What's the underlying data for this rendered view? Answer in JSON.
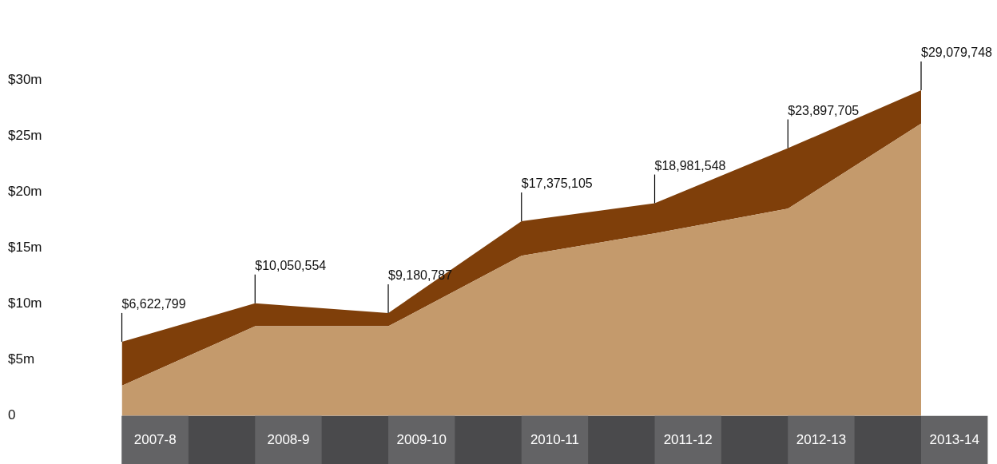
{
  "chart_data": {
    "type": "area",
    "stacked": true,
    "categories": [
      "2007-8",
      "2008-9",
      "2009-10",
      "2010-11",
      "2011-12",
      "2012-13",
      "2013-14"
    ],
    "series": [
      {
        "color": "#c49a6c",
        "values": [
          2.7,
          8.0,
          8.0,
          14.3,
          16.3,
          18.5,
          26.1
        ]
      },
      {
        "color": "#7f3f0a",
        "values": [
          3.922799,
          2.050554,
          1.180787,
          3.075105,
          2.681548,
          5.397705,
          2.979748
        ]
      }
    ],
    "totals": [
      "$6,622,799",
      "$10,050,554",
      "$9,180,787",
      "$17,375,105",
      "$18,981,548",
      "$23,897,705",
      "$29,079,748"
    ],
    "ylim": [
      0,
      30
    ],
    "yticks": [
      {
        "value": 0,
        "label": "0"
      },
      {
        "value": 5,
        "label": "$5m"
      },
      {
        "value": 10,
        "label": "$10m"
      },
      {
        "value": 15,
        "label": "$15m"
      },
      {
        "value": 20,
        "label": "$20m"
      },
      {
        "value": 25,
        "label": "$25m"
      },
      {
        "value": 30,
        "label": "$30m"
      }
    ],
    "grid": false,
    "legend": false
  }
}
